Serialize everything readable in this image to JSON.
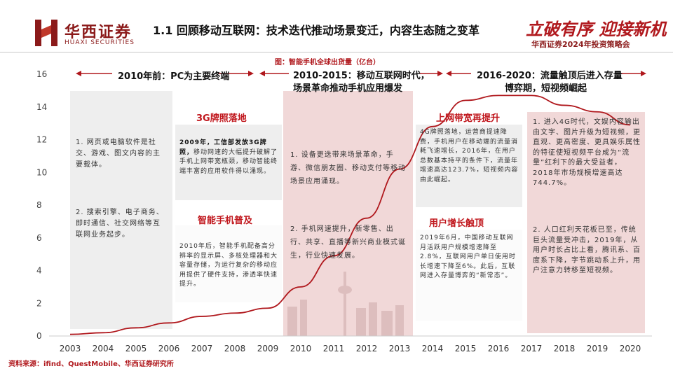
{
  "header": {
    "brand_cn": "华西证券",
    "brand_en": "HUAXI SECURITIES",
    "page_title": "1.1 回顾移动互联网：技术迭代推动场景变迁，内容生态随之变革",
    "slogan": "立破有序 迎接新机",
    "subtitle": "华西证券2024年投资策略会"
  },
  "source": "资料来源：ifind、QuestMobile、华西证券研究所",
  "eras": [
    {
      "label_line1": "2010年前：PC为主要终端",
      "label_line2": ""
    },
    {
      "label_line1": "2010-2015：移动互联网时代，",
      "label_line2": "场景革命推动手机应用爆发"
    },
    {
      "label_line1": "2016-2020：流量触顶后进入存量",
      "label_line2": "博弈期，短视频崛起"
    }
  ],
  "panels": {
    "pc": {
      "item1": "1. 网页或电脑软件是社交、游戏、图文内容的主要载体。",
      "item2": "2. 搜索引擎、电子商务、即时通信、社交网络等互联网业务起步。"
    },
    "g3": {
      "heading": "3G牌照落地",
      "bold_lead": "2009年，工信部发放3G牌照，",
      "body": "移动网速的大幅提升破解了手机上网带宽瓶颈，移动智能终端丰富的应用软件得以涌现。"
    },
    "smartphone": {
      "heading": "智能手机普及",
      "body": "2010年后，智能手机配备高分辨率的显示屏、多核处理器和大容量存储，为运行复杂的移动应用提供了硬件支持，渗透率快速提升。"
    },
    "mobile": {
      "item1": "1. 设备更迭带来场景革命，手游、微信朋友圈、移动支付等移动场景应用涌现。",
      "item2": "2. 手机网速提升，新零售、出行、共享、直播等新兴商业模式诞生，行业快速发展。"
    },
    "speed": {
      "heading": "上网带宽再提升",
      "body": "4G牌照落地，运营商提速降费，手机用户在移动端的流量消耗飞速增长，2016年，在用户总数基本持平的条件下，流量年增速高达123.7%，短视频内容由此崛起。"
    },
    "peak": {
      "heading": "用户增长触顶",
      "body": "2019年6月，中国移动互联网月活跃用户规模增速降至2.8%，互联网用户单日使用时长增速下降至6%。此后，互联网进入存量博弈的“新常态”。"
    },
    "short_video": {
      "item1": "1. 进入4G时代，文娱内容输出由文字、图片升级为短视频，更直观、更高密度、更具娱乐属性的特征使短视频平台成为“流量”红利下的最大受益者，2018年市场规模增速高达744.7%。",
      "item2": "2. 人口红利天花板已至，传统巨头流量受冲击，2019年，从用户时长占比上看，腾讯系、百度系下降，字节跳动系上升，用户注意力转移至短视频。"
    }
  },
  "chart_data": {
    "type": "line",
    "title": "图：智能手机全球出货量（亿台）",
    "xlabel": "",
    "ylabel": "",
    "categories": [
      "2003",
      "2004",
      "2005",
      "2006",
      "2007",
      "2008",
      "2009",
      "2010",
      "2011",
      "2012",
      "2013",
      "2014",
      "2015",
      "2016",
      "2017",
      "2018",
      "2019",
      "2020"
    ],
    "values": [
      0.1,
      0.2,
      0.5,
      0.8,
      1.2,
      1.4,
      1.7,
      3.0,
      4.9,
      7.2,
      10.2,
      12.8,
      14.4,
      14.7,
      14.7,
      14.1,
      13.7,
      12.9
    ],
    "yticks": [
      "0",
      "2",
      "4",
      "6",
      "8",
      "10",
      "12",
      "14",
      "16"
    ],
    "ylim": [
      0,
      16
    ],
    "grid": false,
    "line_color": "#b0181d"
  },
  "colors": {
    "brand": "#8b1a1a",
    "accent": "#b0181d",
    "panel_gray": "#eeeeee",
    "panel_pink": "#f1d8d8",
    "panel_light": "#fbfbfb"
  }
}
